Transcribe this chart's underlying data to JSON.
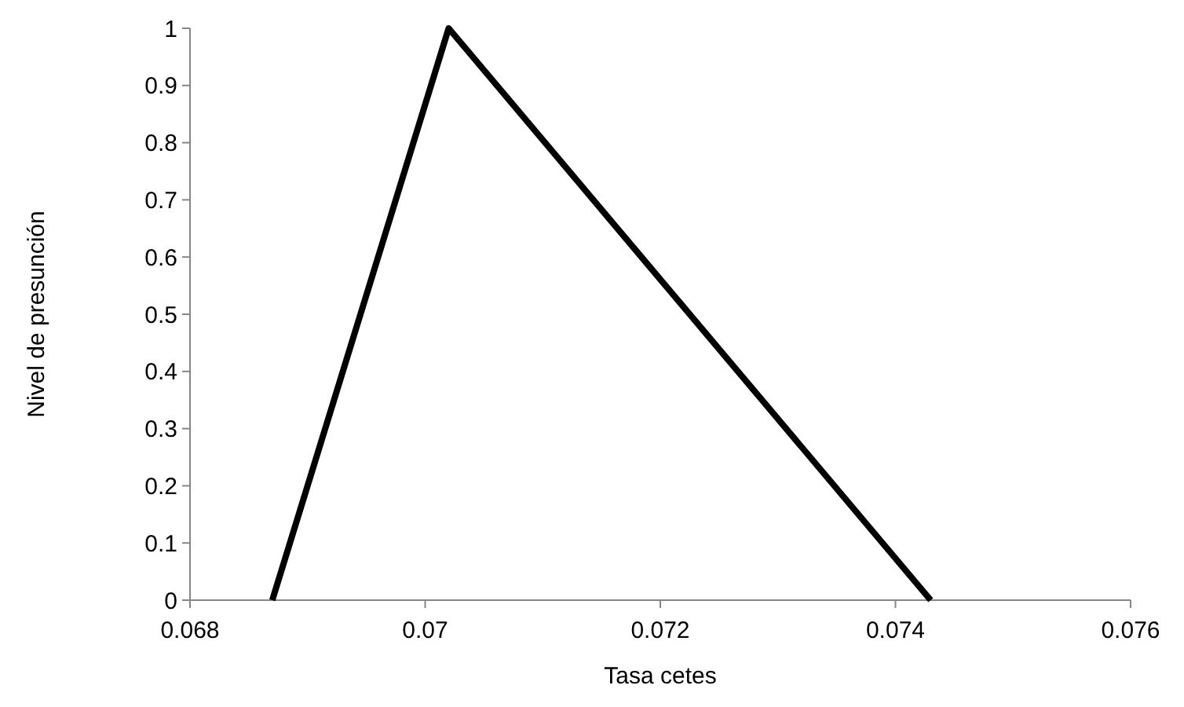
{
  "chart_data": {
    "type": "line",
    "xlabel": "Tasa cetes",
    "ylabel": "Nivel de presunción",
    "x": [
      0.0687,
      0.0702,
      0.0743
    ],
    "series": [
      {
        "color": "#000000",
        "values": [
          0,
          1,
          0
        ]
      }
    ],
    "xlim": [
      0.068,
      0.076
    ],
    "xticks": [
      0.068,
      0.07,
      0.072,
      0.074,
      0.076
    ],
    "ylim": [
      0,
      1
    ],
    "yticks": [
      0,
      0.1,
      0.2,
      0.3,
      0.4,
      0.5,
      0.6,
      0.7,
      0.8,
      0.9,
      1
    ],
    "grid": false,
    "marker": "none",
    "line_style": "solid"
  }
}
